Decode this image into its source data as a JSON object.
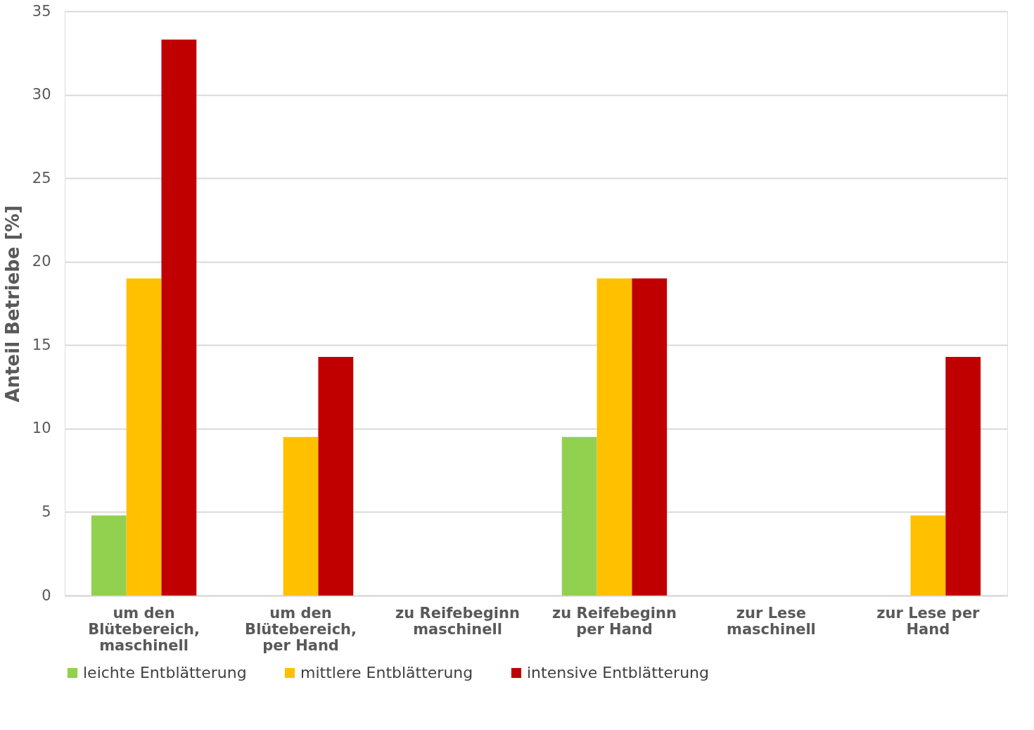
{
  "chart_data": {
    "type": "bar",
    "ylabel": "Anteil Betriebe [%]",
    "categories": [
      "um den Blütebereich, maschinell",
      "um den Blütebereich, per Hand",
      "zu Reifebeginn maschinell",
      "zu Reifebeginn per Hand",
      "zur Lese maschinell",
      "zur Lese per Hand"
    ],
    "series": [
      {
        "name": "leichte Entblätterung",
        "color": "#92d050",
        "values": [
          4.8,
          0,
          0,
          9.5,
          0,
          0
        ]
      },
      {
        "name": "mittlere Entblätterung",
        "color": "#ffc000",
        "values": [
          19,
          9.5,
          0,
          19,
          0,
          4.8
        ]
      },
      {
        "name": "intensive Entblätterung",
        "color": "#c00000",
        "values": [
          33.3,
          14.3,
          0,
          19,
          0,
          14.3
        ]
      }
    ],
    "ylim": [
      0,
      35
    ],
    "yticks": [
      0,
      5,
      10,
      15,
      20,
      25,
      30,
      35
    ],
    "grid": "y",
    "legend": "bottom"
  }
}
